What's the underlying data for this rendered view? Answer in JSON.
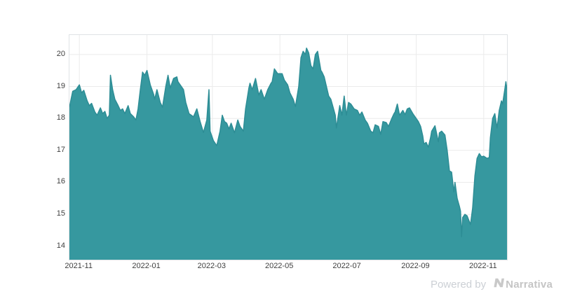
{
  "watermark": {
    "powered_by": "Powered by",
    "brand": "Narrativa"
  },
  "chart_data": {
    "type": "area",
    "title": "",
    "xlabel": "",
    "ylabel": "",
    "grid": true,
    "legend": "none",
    "ylim": [
      13.58,
      20.61
    ],
    "y_ticks": [
      14,
      15,
      16,
      17,
      18,
      19,
      20
    ],
    "x_ticks": [
      {
        "date": "2021-11-01",
        "label": "2021-11"
      },
      {
        "date": "2022-01-01",
        "label": "2022-01"
      },
      {
        "date": "2022-03-01",
        "label": "2022-03"
      },
      {
        "date": "2022-05-01",
        "label": "2022-05"
      },
      {
        "date": "2022-07-01",
        "label": "2022-07"
      },
      {
        "date": "2022-09-01",
        "label": "2022-09"
      },
      {
        "date": "2022-11-01",
        "label": "2022-11"
      }
    ],
    "colors": {
      "fill": "#36989f",
      "line": "#2d8d95",
      "grid": "#ebebeb",
      "border": "#dfe2e5",
      "tick_text": "#3f3f3f",
      "background": "#ffffff"
    },
    "x": [
      "2021-10-23",
      "2021-10-26",
      "2021-10-29",
      "2021-11-01",
      "2021-11-03",
      "2021-11-05",
      "2021-11-08",
      "2021-11-10",
      "2021-11-12",
      "2021-11-15",
      "2021-11-17",
      "2021-11-20",
      "2021-11-22",
      "2021-11-24",
      "2021-11-26",
      "2021-11-28",
      "2021-11-29",
      "2021-12-01",
      "2021-12-03",
      "2021-12-06",
      "2021-12-08",
      "2021-12-10",
      "2021-12-12",
      "2021-12-15",
      "2021-12-17",
      "2021-12-20",
      "2021-12-22",
      "2021-12-24",
      "2021-12-26",
      "2021-12-28",
      "2021-12-30",
      "2022-01-01",
      "2022-01-04",
      "2022-01-07",
      "2022-01-08",
      "2022-01-10",
      "2022-01-13",
      "2022-01-15",
      "2022-01-18",
      "2022-01-20",
      "2022-01-22",
      "2022-01-25",
      "2022-01-28",
      "2022-01-29",
      "2022-02-03",
      "2022-02-05",
      "2022-02-08",
      "2022-02-10",
      "2022-02-12",
      "2022-02-15",
      "2022-02-18",
      "2022-02-21",
      "2022-02-24",
      "2022-02-26",
      "2022-02-27",
      "2022-03-02",
      "2022-03-04",
      "2022-03-05",
      "2022-03-08",
      "2022-03-10",
      "2022-03-12",
      "2022-03-14",
      "2022-03-16",
      "2022-03-18",
      "2022-03-21",
      "2022-03-24",
      "2022-03-26",
      "2022-03-29",
      "2022-03-31",
      "2022-04-03",
      "2022-04-04",
      "2022-04-06",
      "2022-04-09",
      "2022-04-12",
      "2022-04-14",
      "2022-04-17",
      "2022-04-20",
      "2022-04-23",
      "2022-04-24",
      "2022-04-26",
      "2022-04-29",
      "2022-05-03",
      "2022-05-05",
      "2022-05-08",
      "2022-05-10",
      "2022-05-13",
      "2022-05-15",
      "2022-05-18",
      "2022-05-20",
      "2022-05-22",
      "2022-05-24",
      "2022-05-25",
      "2022-05-27",
      "2022-05-29",
      "2022-05-31",
      "2022-06-02",
      "2022-06-04",
      "2022-06-07",
      "2022-06-08",
      "2022-06-10",
      "2022-06-12",
      "2022-06-14",
      "2022-06-16",
      "2022-06-18",
      "2022-06-20",
      "2022-06-21",
      "2022-06-24",
      "2022-06-26",
      "2022-06-28",
      "2022-06-30",
      "2022-07-02",
      "2022-07-04",
      "2022-07-07",
      "2022-07-10",
      "2022-07-12",
      "2022-07-14",
      "2022-07-17",
      "2022-07-19",
      "2022-07-22",
      "2022-07-24",
      "2022-07-26",
      "2022-07-29",
      "2022-07-31",
      "2022-08-02",
      "2022-08-05",
      "2022-08-07",
      "2022-08-10",
      "2022-08-12",
      "2022-08-13",
      "2022-08-15",
      "2022-08-17",
      "2022-08-20",
      "2022-08-22",
      "2022-08-24",
      "2022-08-26",
      "2022-08-29",
      "2022-08-31",
      "2022-09-03",
      "2022-09-05",
      "2022-09-07",
      "2022-09-08",
      "2022-09-10",
      "2022-09-12",
      "2022-09-14",
      "2022-09-15",
      "2022-09-18",
      "2022-09-21",
      "2022-09-22",
      "2022-09-24",
      "2022-09-27",
      "2022-09-29",
      "2022-10-01",
      "2022-10-03",
      "2022-10-05",
      "2022-10-06",
      "2022-10-08",
      "2022-10-10",
      "2022-10-11",
      "2022-10-12",
      "2022-10-13",
      "2022-10-15",
      "2022-10-17",
      "2022-10-20",
      "2022-10-22",
      "2022-10-24",
      "2022-10-26",
      "2022-10-28",
      "2022-10-30",
      "2022-11-01",
      "2022-11-04",
      "2022-11-06",
      "2022-11-07",
      "2022-11-09",
      "2022-11-11",
      "2022-11-13",
      "2022-11-15",
      "2022-11-17",
      "2022-11-18",
      "2022-11-20",
      "2022-11-21",
      "2022-11-22"
    ],
    "y": [
      18.35,
      18.85,
      18.9,
      19.05,
      18.8,
      18.88,
      18.55,
      18.4,
      18.47,
      18.2,
      18.1,
      18.33,
      18.15,
      18.22,
      18.0,
      18.1,
      19.35,
      18.9,
      18.6,
      18.4,
      18.25,
      18.3,
      18.15,
      18.4,
      18.15,
      18.05,
      17.95,
      18.3,
      18.9,
      19.45,
      19.35,
      19.5,
      19.05,
      18.75,
      18.6,
      18.9,
      18.5,
      18.35,
      19.0,
      19.35,
      18.95,
      19.25,
      19.3,
      19.15,
      18.9,
      18.5,
      18.15,
      18.1,
      18.05,
      18.3,
      17.9,
      17.56,
      17.95,
      18.9,
      17.6,
      17.3,
      17.2,
      17.15,
      17.6,
      18.1,
      17.9,
      17.85,
      17.67,
      17.85,
      17.55,
      17.95,
      17.75,
      17.6,
      18.3,
      18.95,
      19.1,
      18.9,
      19.25,
      18.73,
      18.9,
      18.6,
      18.9,
      19.1,
      19.15,
      19.55,
      19.4,
      19.4,
      19.2,
      19.05,
      18.8,
      18.6,
      18.37,
      19.0,
      19.9,
      20.1,
      20.0,
      20.2,
      20.05,
      19.65,
      19.55,
      20.0,
      20.1,
      19.5,
      19.45,
      19.3,
      19.0,
      18.7,
      18.6,
      18.35,
      18.1,
      17.7,
      18.4,
      18.1,
      18.7,
      18.1,
      18.5,
      18.45,
      18.3,
      18.25,
      18.1,
      18.2,
      17.95,
      17.85,
      17.6,
      17.55,
      17.8,
      17.75,
      17.5,
      17.9,
      17.87,
      17.75,
      18.0,
      18.15,
      18.2,
      18.45,
      18.1,
      18.25,
      18.12,
      18.3,
      18.33,
      18.15,
      18.05,
      17.9,
      17.75,
      17.45,
      17.2,
      17.25,
      17.1,
      17.4,
      17.6,
      17.77,
      17.27,
      17.55,
      17.6,
      17.48,
      17.0,
      16.36,
      16.32,
      15.7,
      16.0,
      15.5,
      15.25,
      15.1,
      14.3,
      14.9,
      15.0,
      14.95,
      14.68,
      15.2,
      16.2,
      16.75,
      16.9,
      16.8,
      16.82,
      16.75,
      16.78,
      17.4,
      18.0,
      18.15,
      17.7,
      18.25,
      18.55,
      18.45,
      18.9,
      19.15,
      18.9
    ]
  }
}
